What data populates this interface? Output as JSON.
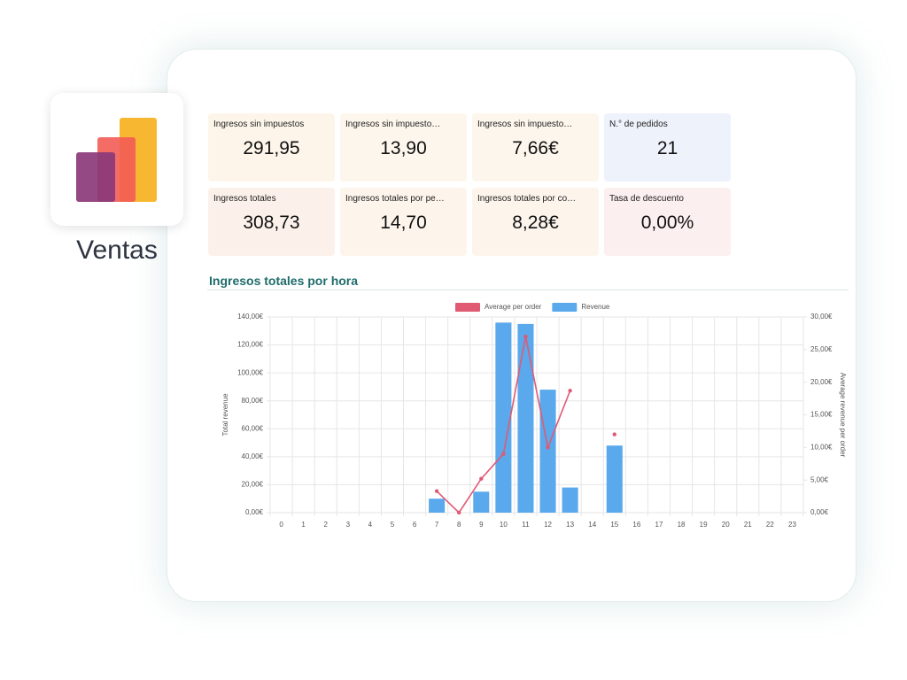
{
  "app": {
    "name": "Ventas"
  },
  "kpis": [
    {
      "label": "Ingresos sin impuestos",
      "value": "291,95"
    },
    {
      "label": "Ingresos sin impuesto…",
      "value": "13,90"
    },
    {
      "label": "Ingresos sin impuesto…",
      "value": "7,66€"
    },
    {
      "label": "N.° de pedidos",
      "value": "21"
    },
    {
      "label": "Ingresos totales",
      "value": "308,73"
    },
    {
      "label": "Ingresos totales por pe…",
      "value": "14,70"
    },
    {
      "label": "Ingresos totales por co…",
      "value": "8,28€"
    },
    {
      "label": "Tasa de descuento",
      "value": "0,00%"
    }
  ],
  "chart_data": {
    "type": "bar",
    "title": "Ingresos totales por hora",
    "y_label": "Total revenue",
    "y2_label": "Average revenue per order",
    "categories": [
      "0",
      "1",
      "2",
      "3",
      "4",
      "5",
      "6",
      "7",
      "8",
      "9",
      "10",
      "11",
      "12",
      "13",
      "14",
      "15",
      "16",
      "17",
      "18",
      "19",
      "20",
      "21",
      "22",
      "23"
    ],
    "series": [
      {
        "name": "Average per order",
        "color": "#e05a74",
        "type": "line",
        "axis": "y2",
        "values": [
          null,
          null,
          null,
          null,
          null,
          null,
          null,
          3.3,
          0,
          5.2,
          9,
          27,
          10,
          18.7,
          null,
          12,
          null,
          null,
          null,
          null,
          null,
          null,
          null,
          null
        ]
      },
      {
        "name": "Revenue",
        "color": "#5aa9ec",
        "type": "bar",
        "values": [
          0,
          0,
          0,
          0,
          0,
          0,
          0,
          10,
          0,
          15,
          136,
          135,
          88,
          18,
          0,
          48,
          0,
          0,
          0,
          0,
          0,
          0,
          0,
          0
        ]
      }
    ],
    "ylim": [
      0,
      140
    ],
    "yticks": [
      {
        "value": 0,
        "label": "0,00€"
      },
      {
        "value": 20,
        "label": "20,00€"
      },
      {
        "value": 40,
        "label": "40,00€"
      },
      {
        "value": 60,
        "label": "60,00€"
      },
      {
        "value": 80,
        "label": "80,00€"
      },
      {
        "value": 100,
        "label": "100,00€"
      },
      {
        "value": 120,
        "label": "120,00€"
      },
      {
        "value": 140,
        "label": "140,00€"
      }
    ],
    "y2lim": [
      0,
      30
    ],
    "y2ticks": [
      {
        "value": 0,
        "label": "0,00€"
      },
      {
        "value": 5,
        "label": "5,00€"
      },
      {
        "value": 10,
        "label": "10,00€"
      },
      {
        "value": 15,
        "label": "15,00€"
      },
      {
        "value": 20,
        "label": "20,00€"
      },
      {
        "value": 25,
        "label": "25,00€"
      },
      {
        "value": 30,
        "label": "30,00€"
      }
    ],
    "grid": true,
    "legend": "top"
  }
}
